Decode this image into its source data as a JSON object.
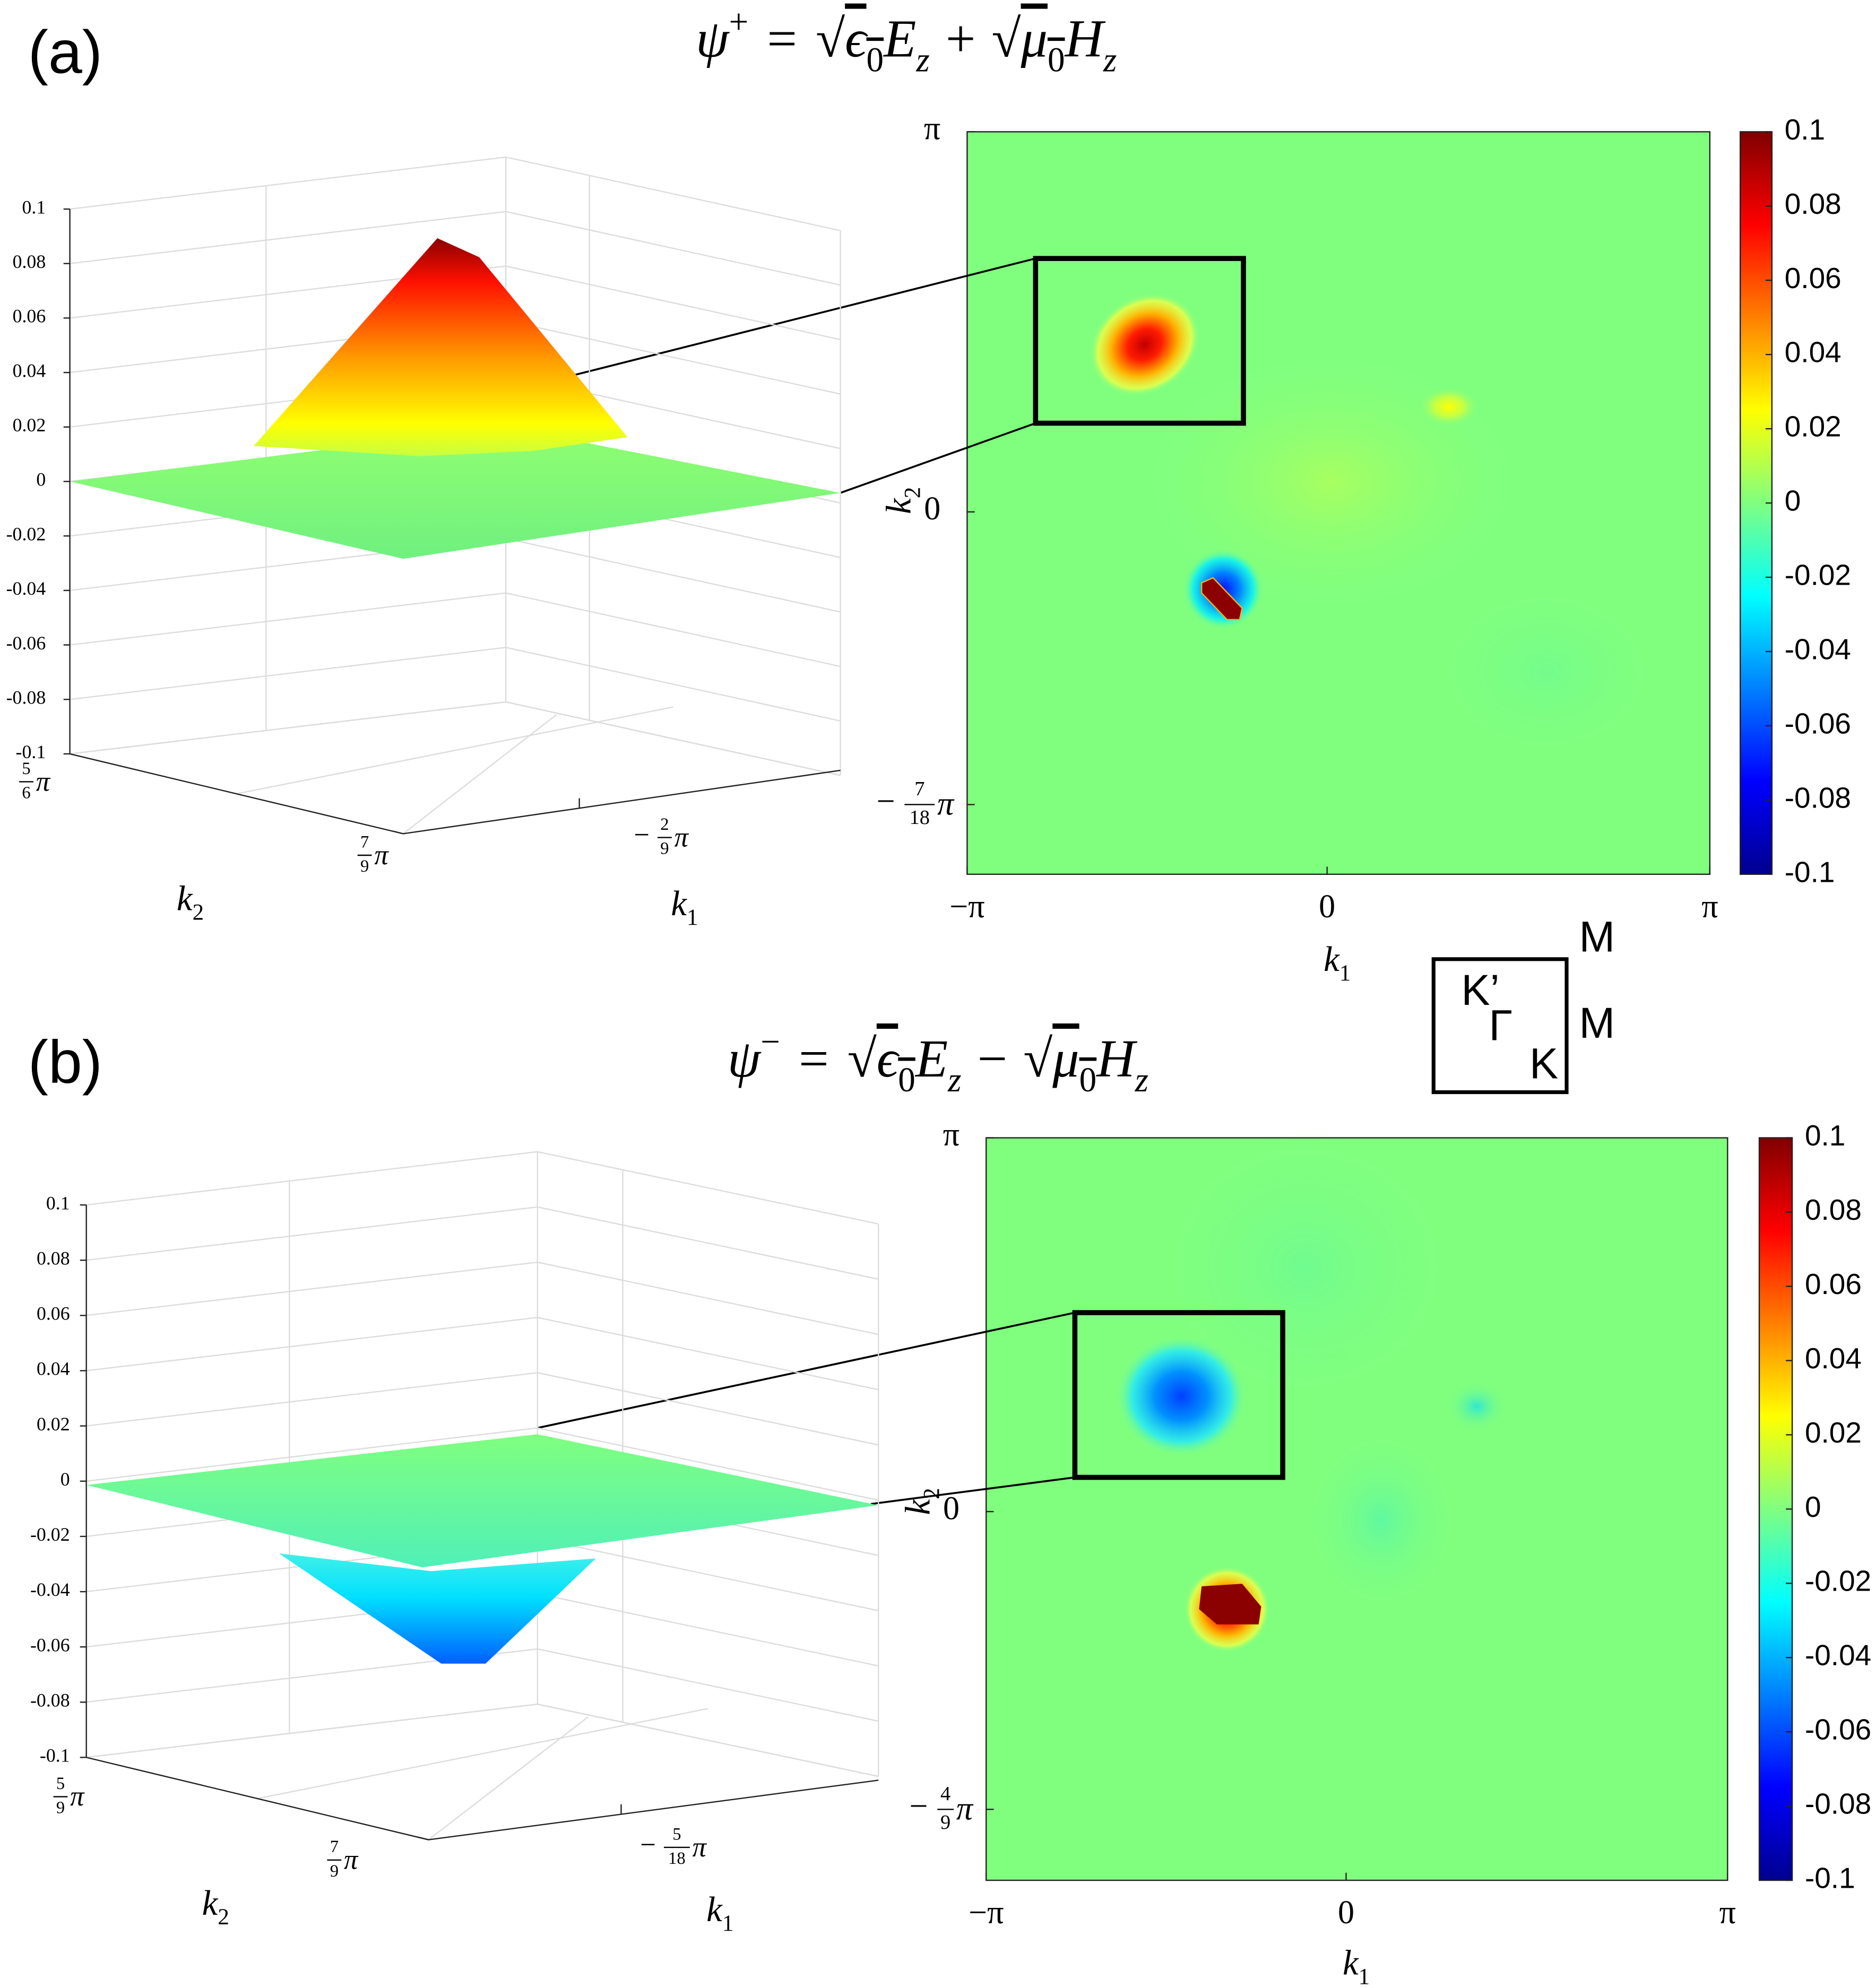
{
  "chart_data": [
    {
      "type": "surface_heatmap",
      "panel_label": "(a)",
      "title": {
        "lhs": "ψ",
        "sup": "+",
        "eq": "=",
        "root": "√",
        "a": "ϵ",
        "a_sub": "0",
        "b": "E",
        "b_sub": "z",
        "op": "+",
        "c": "μ",
        "c_sub": "0",
        "d": "H",
        "d_sub": "z"
      },
      "surface": {
        "zlim": [
          -0.1,
          0.1
        ],
        "zticks": [
          0.1,
          0.08,
          0.06,
          0.04,
          0.02,
          0,
          -0.02,
          -0.04,
          -0.06,
          -0.08,
          -0.1
        ],
        "k2_tick_labels": [
          {
            "num": "5",
            "den": "6",
            "pi": "π"
          },
          {
            "num": "7",
            "den": "9",
            "pi": "π"
          }
        ],
        "k1_tick_labels": [
          {
            "sign": "−",
            "num": "2",
            "den": "9",
            "pi": "π"
          }
        ],
        "xlabel": "k1",
        "ylabel": "k2"
      },
      "heatmap": {
        "x_tick_labels": [
          "−π",
          "0",
          "π"
        ],
        "y_tick_labels": [
          "π",
          "0",
          {
            "sign": "−",
            "num": "7",
            "den": "18",
            "pi": "π"
          }
        ],
        "xlabel": "k1",
        "ylabel": "k2",
        "colorbar": {
          "clim": [
            -0.1,
            0.1
          ],
          "ticks": [
            0.1,
            0.08,
            0.06,
            0.04,
            0.02,
            0,
            -0.02,
            -0.04,
            -0.06,
            -0.08,
            -0.1
          ]
        }
      }
    },
    {
      "type": "surface_heatmap",
      "panel_label": "(b)",
      "title": {
        "lhs": "ψ",
        "sup": "−",
        "eq": "=",
        "root": "√",
        "a": "ϵ",
        "a_sub": "0",
        "b": "E",
        "b_sub": "z",
        "op": "−",
        "c": "μ",
        "c_sub": "0",
        "d": "H",
        "d_sub": "z"
      },
      "surface": {
        "zlim": [
          -0.1,
          0.1
        ],
        "zticks": [
          0.1,
          0.08,
          0.06,
          0.04,
          0.02,
          0,
          -0.02,
          -0.04,
          -0.06,
          -0.08,
          -0.1
        ],
        "k2_tick_labels": [
          {
            "num": "5",
            "den": "9",
            "pi": "π"
          },
          {
            "num": "7",
            "den": "9",
            "pi": "π"
          }
        ],
        "k1_tick_labels": [
          {
            "sign": "−",
            "num": "5",
            "den": "18",
            "pi": "π"
          }
        ],
        "xlabel": "k1",
        "ylabel": "k2"
      },
      "heatmap": {
        "x_tick_labels": [
          "−π",
          "0",
          "π"
        ],
        "y_tick_labels": [
          "π",
          "0",
          {
            "sign": "−",
            "num": "4",
            "den": "9",
            "pi": "π"
          }
        ],
        "xlabel": "k1",
        "ylabel": "k2",
        "colorbar": {
          "clim": [
            -0.1,
            0.1
          ],
          "ticks": [
            0.1,
            0.08,
            0.06,
            0.04,
            0.02,
            0,
            -0.02,
            -0.04,
            -0.06,
            -0.08,
            -0.1
          ]
        }
      }
    }
  ],
  "inset": {
    "labels": [
      "M",
      "M",
      "K’",
      "Γ",
      "K"
    ]
  }
}
